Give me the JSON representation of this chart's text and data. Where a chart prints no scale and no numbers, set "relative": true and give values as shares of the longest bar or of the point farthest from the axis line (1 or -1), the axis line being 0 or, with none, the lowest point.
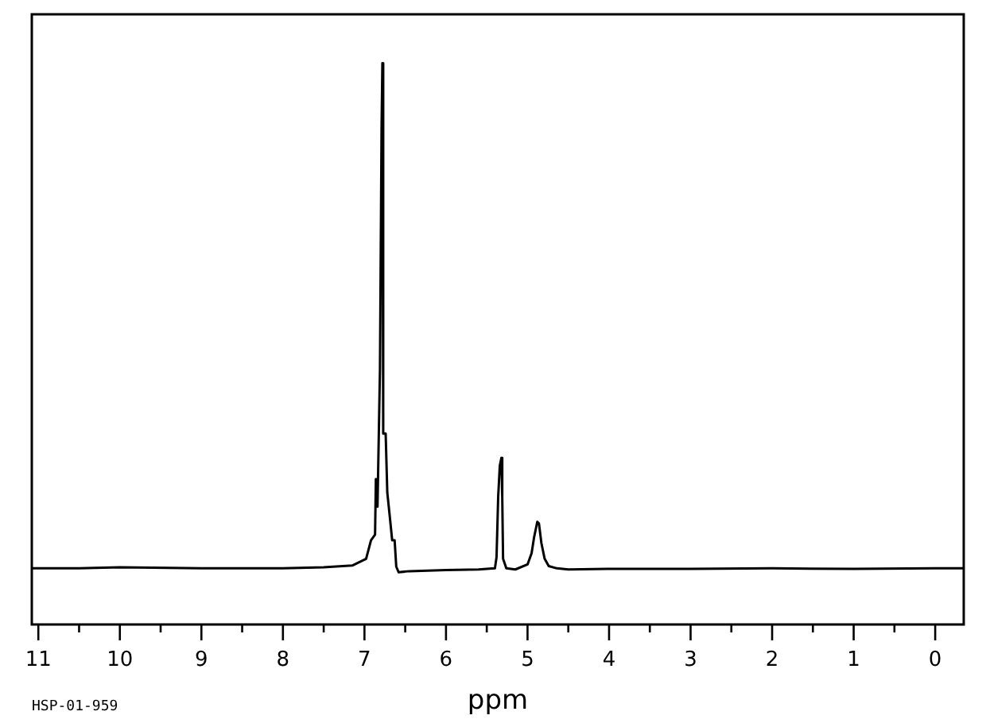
{
  "chart_data": {
    "type": "line",
    "xlabel": "ppm",
    "annotations": [
      "HSP-01-959"
    ],
    "relative": true,
    "tick_labels": "x",
    "xlim": [
      11.08,
      -0.35
    ],
    "xticks": [
      11,
      {
        "value": 10.5,
        "label": null
      },
      10,
      {
        "value": 9.5,
        "label": null
      },
      9,
      {
        "value": 8.5,
        "label": null
      },
      8,
      {
        "value": 7.5,
        "label": null
      },
      7,
      {
        "value": 6.5,
        "label": null
      },
      6,
      {
        "value": 5.5,
        "label": null
      },
      5,
      {
        "value": 4.5,
        "label": null
      },
      4,
      {
        "value": 3.5,
        "label": null
      },
      3,
      {
        "value": 2.5,
        "label": null
      },
      2,
      {
        "value": 1.5,
        "label": null
      },
      1,
      {
        "value": 0.5,
        "label": null
      },
      0
    ],
    "series": [
      {
        "color": "#000000",
        "x": [
          11.08,
          10.5,
          10.0,
          9.0,
          8.0,
          7.5,
          7.15,
          6.98,
          6.92,
          6.87,
          6.86,
          6.84,
          6.81,
          6.79,
          6.78,
          6.77,
          6.74,
          6.72,
          6.69,
          6.66,
          6.63,
          6.61,
          6.58,
          6.45,
          6.0,
          5.6,
          5.4,
          5.38,
          5.36,
          5.34,
          5.32,
          5.31,
          5.3,
          5.26,
          5.15,
          5.0,
          4.95,
          4.92,
          4.88,
          4.86,
          4.83,
          4.79,
          4.74,
          4.64,
          4.5,
          4.0,
          3.0,
          2.0,
          1.0,
          0.0,
          -0.35
        ],
        "values": [
          0.1,
          0.1,
          0.102,
          0.1,
          0.1,
          0.102,
          0.105,
          0.117,
          0.15,
          0.16,
          0.259,
          0.21,
          0.453,
          0.887,
          1.0,
          0.34,
          0.34,
          0.235,
          0.193,
          0.15,
          0.15,
          0.103,
          0.093,
          0.095,
          0.097,
          0.098,
          0.1,
          0.12,
          0.227,
          0.283,
          0.297,
          0.227,
          0.117,
          0.1,
          0.098,
          0.107,
          0.127,
          0.155,
          0.183,
          0.18,
          0.145,
          0.117,
          0.104,
          0.1,
          0.098,
          0.099,
          0.099,
          0.1,
          0.099,
          0.1,
          0.1
        ]
      }
    ]
  }
}
